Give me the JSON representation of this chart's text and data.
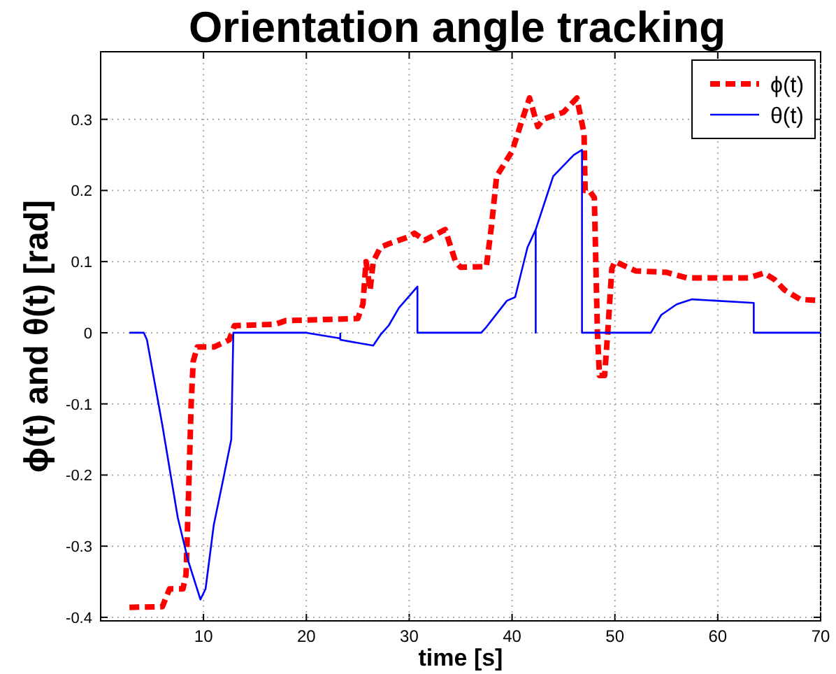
{
  "chart_data": {
    "type": "line",
    "title": "Orientation angle tracking",
    "xlabel": "time [s]",
    "ylabel": "ϕ(t) and θ(t) [rad]",
    "xlim": [
      0,
      70
    ],
    "xticks": [
      10,
      20,
      30,
      40,
      50,
      60,
      70
    ],
    "ylim": [
      -0.405,
      0.395
    ],
    "yticks": [
      -0.4,
      -0.3,
      -0.2,
      -0.1,
      0,
      0.1,
      0.2,
      0.3
    ],
    "grid": true,
    "legend": "top right",
    "series": [
      {
        "name": "ϕ(t)",
        "color": "#ff0000",
        "line_style": "dashed",
        "x": [
          2.8,
          6.0,
          6.7,
          8.0,
          8.3,
          8.5,
          8.8,
          9.0,
          9.4,
          11,
          12.5,
          13,
          17,
          18,
          25,
          25.5,
          25.8,
          26.2,
          26.5,
          27.2,
          28,
          30,
          30.5,
          31.5,
          33.5,
          34.5,
          35,
          37.5,
          38,
          38.5,
          40,
          41,
          41.7,
          42.5,
          43,
          45,
          46.3,
          47,
          47.1,
          47.5,
          48,
          48.3,
          48.5,
          49,
          49.3,
          49.7,
          50,
          52,
          55,
          57,
          63,
          64.5,
          65.5,
          66.5,
          68,
          70
        ],
        "values": [
          -0.386,
          -0.385,
          -0.36,
          -0.36,
          -0.34,
          -0.25,
          -0.1,
          -0.04,
          -0.02,
          -0.02,
          -0.01,
          0.01,
          0.012,
          0.017,
          0.02,
          0.04,
          0.1,
          0.06,
          0.1,
          0.12,
          0.125,
          0.135,
          0.14,
          0.13,
          0.145,
          0.1,
          0.092,
          0.093,
          0.15,
          0.22,
          0.255,
          0.3,
          0.33,
          0.29,
          0.3,
          0.31,
          0.33,
          0.28,
          0.2,
          0.2,
          0.19,
          0.0,
          -0.06,
          -0.06,
          0.0,
          0.09,
          0.1,
          0.087,
          0.085,
          0.077,
          0.077,
          0.084,
          0.075,
          0.06,
          0.047,
          0.045
        ]
      },
      {
        "name": "θ(t)",
        "color": "#0000ff",
        "line_style": "solid",
        "x": [
          2.8,
          4.2,
          4.5,
          6,
          7.5,
          8.5,
          9.7,
          10.2,
          11,
          12,
          12.7,
          12.9,
          20,
          23.3,
          23.3,
          23.3,
          26.5,
          27.2,
          28,
          29,
          30.8,
          30.8,
          37,
          37.5,
          39.5,
          40.3,
          41.5,
          42.3,
          42.3,
          42.3,
          44,
          46,
          46.8,
          46.8,
          53.5,
          54.5,
          56,
          57.5,
          63.5,
          63.5,
          70
        ],
        "values": [
          0,
          0,
          -0.01,
          -0.13,
          -0.26,
          -0.32,
          -0.375,
          -0.36,
          -0.27,
          -0.2,
          -0.15,
          0,
          0,
          -0.008,
          -0.001,
          -0.01,
          -0.018,
          -0.003,
          0.01,
          0.035,
          0.065,
          0,
          0,
          0.008,
          0.045,
          0.05,
          0.12,
          0.145,
          0,
          0.145,
          0.22,
          0.25,
          0.257,
          0,
          0,
          0.025,
          0.04,
          0.047,
          0.042,
          0,
          0
        ]
      }
    ]
  }
}
